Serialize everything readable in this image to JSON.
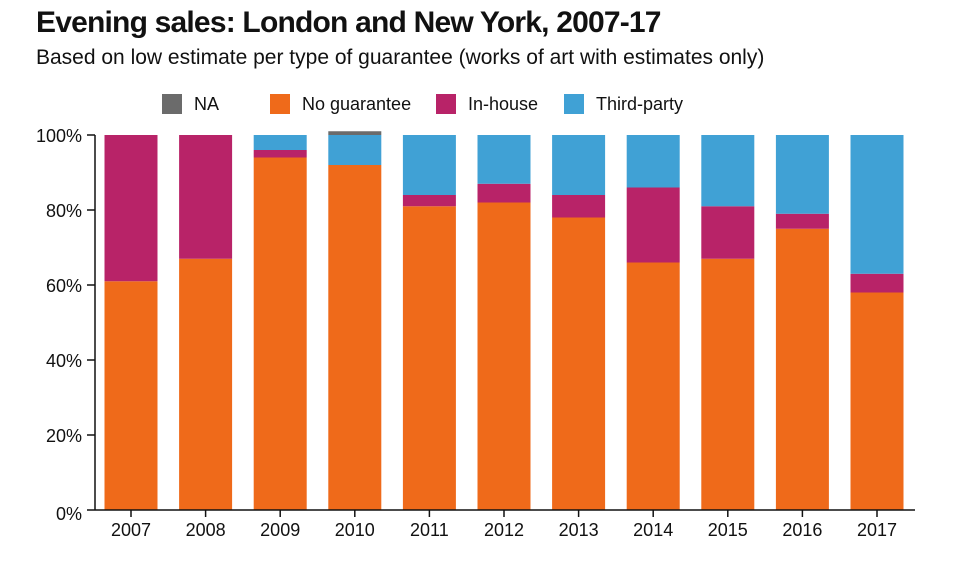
{
  "chart_data": {
    "type": "bar",
    "stacked": true,
    "title": "Evening sales: London and New York, 2007-17",
    "subtitle": "Based on low estimate per type of guarantee (works of art with estimates only)",
    "xlabel": "",
    "ylabel": "",
    "ylim": [
      0,
      100
    ],
    "y_ticks": [
      "0%",
      "20%",
      "40%",
      "60%",
      "80%",
      "100%"
    ],
    "grid": false,
    "legend_position": "top",
    "categories": [
      "2007",
      "2008",
      "2009",
      "2010",
      "2011",
      "2012",
      "2013",
      "2014",
      "2015",
      "2016",
      "2017"
    ],
    "series": [
      {
        "name": "No guarantee",
        "color": "#ef6a1a",
        "values": [
          61,
          67,
          94,
          92,
          81,
          82,
          78,
          66,
          67,
          75,
          58
        ]
      },
      {
        "name": "In-house",
        "color": "#b82368",
        "values": [
          39,
          33,
          2,
          0,
          3,
          5,
          6,
          20,
          14,
          4,
          5
        ]
      },
      {
        "name": "Third-party",
        "color": "#40a1d5",
        "values": [
          0,
          0,
          4,
          8,
          16,
          13,
          16,
          14,
          19,
          21,
          37
        ]
      },
      {
        "name": "NA",
        "color": "#6b6b6b",
        "values": [
          0,
          0,
          0,
          1,
          0,
          0,
          0,
          0,
          0,
          0,
          0
        ]
      }
    ],
    "legend_order": [
      "NA",
      "No guarantee",
      "In-house",
      "Third-party"
    ]
  }
}
